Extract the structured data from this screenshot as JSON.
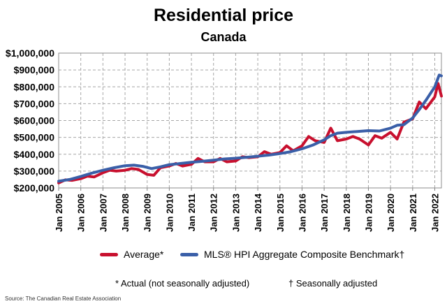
{
  "chart_data": {
    "type": "line",
    "title": "Residential price",
    "subtitle": "Canada",
    "xlabel": "",
    "ylabel": "",
    "xlim": [
      2005.0,
      2022.3
    ],
    "ylim": [
      200000,
      1000000
    ],
    "yticks": [
      200000,
      300000,
      400000,
      500000,
      600000,
      700000,
      800000,
      900000,
      1000000
    ],
    "ytick_labels": [
      "$200,000",
      "$300,000",
      "$400,000",
      "$500,000",
      "$600,000",
      "$700,000",
      "$800,000",
      "$900,000",
      "$1,000,000"
    ],
    "xticks": [
      2005,
      2006,
      2007,
      2008,
      2009,
      2010,
      2011,
      2012,
      2013,
      2014,
      2015,
      2016,
      2017,
      2018,
      2019,
      2020,
      2021,
      2022
    ],
    "xtick_labels": [
      "Jan 2005",
      "Jan 2006",
      "Jan 2007",
      "Jan 2008",
      "Jan 2009",
      "Jan 2010",
      "Jan 2011",
      "Jan 2012",
      "Jan 2013",
      "Jan 2014",
      "Jan 2015",
      "Jan 2016",
      "Jan 2017",
      "Jan 2018",
      "Jan 2019",
      "Jan 2020",
      "Jan 2021",
      "Jan 2022"
    ],
    "grid": true,
    "legend_position": "bottom",
    "series": [
      {
        "name": "Average*",
        "color": "#c8102e",
        "x": [
          2005.0,
          2005.3,
          2005.6,
          2006.0,
          2006.3,
          2006.6,
          2007.0,
          2007.3,
          2007.6,
          2008.0,
          2008.3,
          2008.6,
          2009.0,
          2009.3,
          2009.6,
          2010.0,
          2010.3,
          2010.6,
          2011.0,
          2011.3,
          2011.6,
          2012.0,
          2012.3,
          2012.6,
          2013.0,
          2013.3,
          2013.6,
          2014.0,
          2014.3,
          2014.6,
          2015.0,
          2015.3,
          2015.6,
          2016.0,
          2016.3,
          2016.6,
          2017.0,
          2017.3,
          2017.6,
          2018.0,
          2018.3,
          2018.6,
          2019.0,
          2019.3,
          2019.6,
          2020.0,
          2020.3,
          2020.6,
          2021.0,
          2021.3,
          2021.6,
          2022.0,
          2022.15,
          2022.3
        ],
        "values": [
          230000,
          248000,
          245000,
          255000,
          270000,
          265000,
          290000,
          305000,
          300000,
          305000,
          315000,
          310000,
          280000,
          275000,
          320000,
          330000,
          345000,
          330000,
          340000,
          375000,
          355000,
          355000,
          375000,
          355000,
          360000,
          385000,
          380000,
          385000,
          415000,
          400000,
          410000,
          450000,
          420000,
          450000,
          505000,
          480000,
          470000,
          555000,
          480000,
          490000,
          505000,
          490000,
          455000,
          510000,
          495000,
          530000,
          490000,
          590000,
          610000,
          710000,
          670000,
          740000,
          820000,
          745000
        ]
      },
      {
        "name": "MLS® HPI Aggregate Composite Benchmark†",
        "color": "#3a5fa8",
        "x": [
          2005.0,
          2005.5,
          2006.0,
          2006.5,
          2007.0,
          2007.5,
          2008.0,
          2008.4,
          2008.8,
          2009.2,
          2009.6,
          2010.0,
          2010.5,
          2011.0,
          2011.5,
          2012.0,
          2012.5,
          2013.0,
          2013.5,
          2014.0,
          2014.5,
          2015.0,
          2015.5,
          2016.0,
          2016.5,
          2017.0,
          2017.3,
          2017.6,
          2018.0,
          2018.5,
          2019.0,
          2019.5,
          2020.0,
          2020.3,
          2020.6,
          2021.0,
          2021.3,
          2021.6,
          2022.0,
          2022.2,
          2022.3
        ],
        "values": [
          240000,
          250000,
          268000,
          288000,
          305000,
          320000,
          332000,
          335000,
          328000,
          315000,
          325000,
          338000,
          345000,
          352000,
          358000,
          365000,
          372000,
          376000,
          382000,
          388000,
          395000,
          404000,
          415000,
          432000,
          455000,
          485000,
          510000,
          525000,
          530000,
          535000,
          540000,
          538000,
          555000,
          572000,
          575000,
          615000,
          665000,
          720000,
          800000,
          870000,
          865000
        ]
      }
    ]
  },
  "notes": {
    "actual": "* Actual (not seasonally adjusted)",
    "seasonal": "† Seasonally adjusted"
  },
  "source": "Source: The Canadian Real Estate Association"
}
